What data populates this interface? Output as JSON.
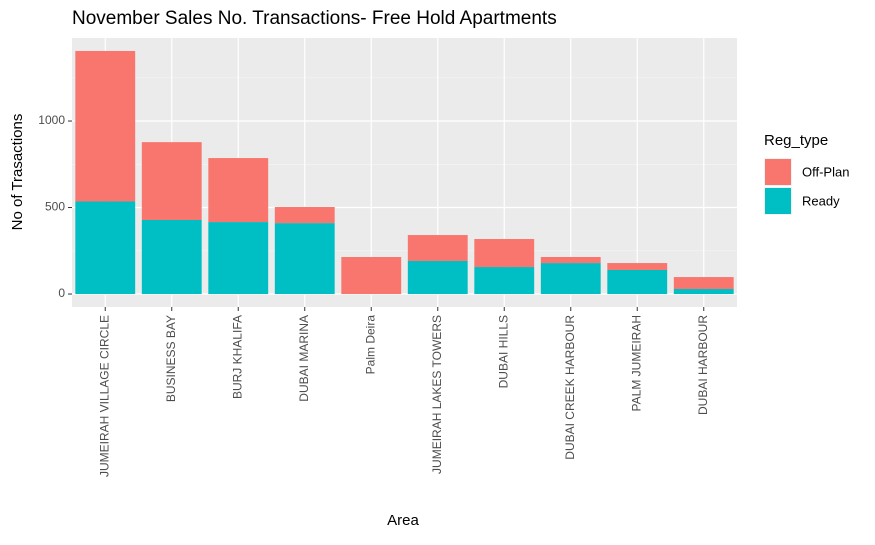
{
  "chart_data": {
    "type": "stacked_bar",
    "title": "November Sales No. Transactions- Free Hold Apartments",
    "x_label": "Area",
    "y_label": "No of Trasactions",
    "legend_title": "Reg_type",
    "categories": [
      "JUMEIRAH VILLAGE CIRCLE",
      "BUSINESS BAY",
      "BURJ KHALIFA",
      "DUBAI MARINA",
      "Palm Deira",
      "JUMEIRAH LAKES TOWERS",
      "DUBAI HILLS",
      "DUBAI CREEK HARBOUR",
      "PALM JUMEIRAH",
      "DUBAI HARBOUR"
    ],
    "series": [
      {
        "name": "Off-Plan",
        "color": "#f8766d",
        "values": [
          870,
          450,
          370,
          93,
          214,
          150,
          162,
          35,
          40,
          69
        ]
      },
      {
        "name": "Ready",
        "color": "#00bfc4",
        "values": [
          535,
          428,
          416,
          410,
          0,
          191,
          156,
          179,
          139,
          29
        ]
      }
    ],
    "ylim": [
      -75,
      1480
    ],
    "yticks": [
      0,
      500,
      1000
    ],
    "grid": true
  }
}
